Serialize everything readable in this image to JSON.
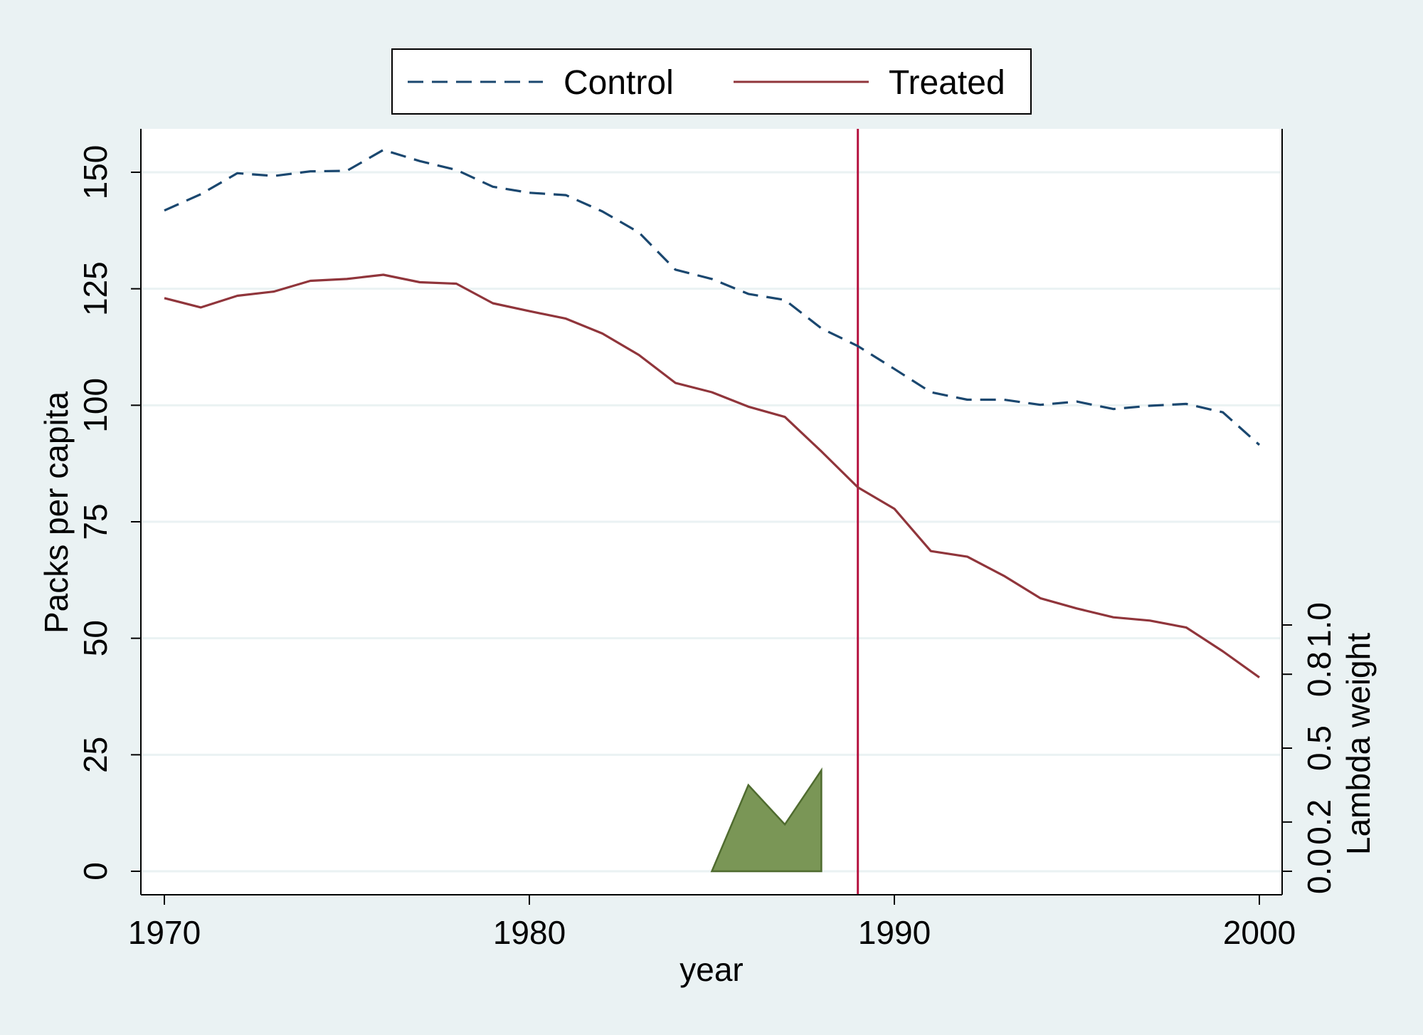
{
  "chart_data": {
    "type": "line",
    "title": "",
    "xlabel": "year",
    "ylabel": "Packs per capita",
    "y2label": "Lambda weight",
    "xlim": [
      1970,
      2000
    ],
    "ylim": [
      0,
      150
    ],
    "y2lim": [
      0.0,
      1.0
    ],
    "xticks": [
      1970,
      1980,
      1990,
      2000
    ],
    "yticks": [
      0,
      25,
      50,
      75,
      100,
      125,
      150
    ],
    "y2ticks": [
      0.0,
      0.2,
      0.5,
      0.8,
      1.0
    ],
    "y2tick_labels": [
      "0.0",
      "0.2",
      "0.5",
      "0.8",
      "1.0"
    ],
    "grid": true,
    "legend_position": "top-center",
    "treatment_year": 1989,
    "x": [
      1970,
      1971,
      1972,
      1973,
      1974,
      1975,
      1976,
      1977,
      1978,
      1979,
      1980,
      1981,
      1982,
      1983,
      1984,
      1985,
      1986,
      1987,
      1988,
      1989,
      1990,
      1991,
      1992,
      1993,
      1994,
      1995,
      1996,
      1997,
      1998,
      1999,
      2000
    ],
    "series": [
      {
        "name": "Control",
        "style": "dashed",
        "color": "#1a476f",
        "values": [
          141.8,
          145.3,
          149.8,
          149.2,
          150.2,
          150.3,
          154.8,
          152.4,
          150.5,
          146.9,
          145.6,
          145.1,
          141.6,
          137.1,
          129.1,
          127.1,
          123.9,
          122.6,
          116.5,
          112.7,
          107.8,
          102.8,
          101.2,
          101.2,
          100.1,
          100.8,
          99.2,
          99.9,
          100.3,
          98.5,
          91.5
        ]
      },
      {
        "name": "Treated",
        "style": "solid",
        "color": "#90353b",
        "values": [
          123.0,
          121.0,
          123.5,
          124.4,
          126.7,
          127.1,
          128.0,
          126.4,
          126.1,
          121.9,
          120.2,
          118.6,
          115.4,
          110.8,
          104.8,
          102.8,
          99.7,
          97.5,
          90.1,
          82.4,
          77.8,
          68.7,
          67.5,
          63.4,
          58.6,
          56.4,
          54.5,
          53.8,
          52.3,
          47.2,
          41.6
        ]
      }
    ],
    "lambda_weights": {
      "color": "#7a9656",
      "x": [
        1985,
        1986,
        1987,
        1988
      ],
      "values": [
        0.0,
        0.35,
        0.19,
        0.41
      ]
    }
  }
}
